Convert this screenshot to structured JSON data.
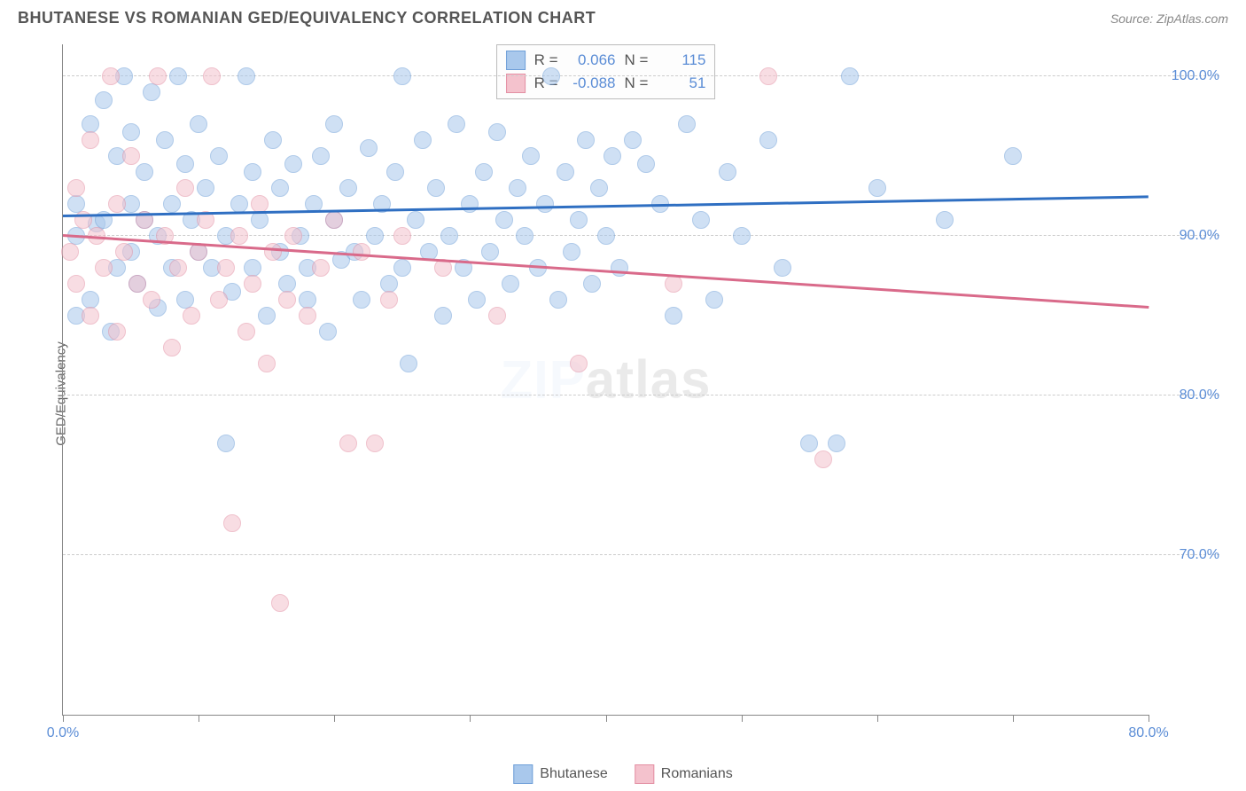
{
  "title": "BHUTANESE VS ROMANIAN GED/EQUIVALENCY CORRELATION CHART",
  "source": "Source: ZipAtlas.com",
  "watermark_a": "ZIP",
  "watermark_b": "atlas",
  "ylabel": "GED/Equivalency",
  "chart": {
    "type": "scatter",
    "xlim": [
      0,
      80
    ],
    "ylim": [
      60,
      102
    ],
    "xticks": [
      0,
      10,
      20,
      30,
      40,
      50,
      60,
      70,
      80
    ],
    "xtick_labels": {
      "0": "0.0%",
      "80": "80.0%"
    },
    "yticks": [
      70,
      80,
      90,
      100
    ],
    "ytick_labels": [
      "70.0%",
      "80.0%",
      "90.0%",
      "100.0%"
    ],
    "background": "#ffffff",
    "grid_color": "#cccccc",
    "axis_color": "#888888",
    "tick_label_color": "#5b8dd6",
    "tick_label_fontsize": 16,
    "point_radius": 10,
    "point_opacity": 0.55,
    "series": [
      {
        "name": "Bhutanese",
        "fill": "#a9c8ec",
        "stroke": "#6f9fd8",
        "trend": {
          "x0": 0,
          "y0": 91.2,
          "x1": 80,
          "y1": 92.4,
          "color": "#2f6fc2",
          "width": 2.5
        },
        "R": "0.066",
        "N": "115",
        "points": [
          [
            1,
            85
          ],
          [
            1,
            90
          ],
          [
            1,
            92
          ],
          [
            2,
            97
          ],
          [
            2,
            86
          ],
          [
            2.5,
            90.8
          ],
          [
            3,
            98.5
          ],
          [
            3,
            91
          ],
          [
            3.5,
            84
          ],
          [
            4,
            88
          ],
          [
            4,
            95
          ],
          [
            4.5,
            100
          ],
          [
            5,
            92
          ],
          [
            5,
            96.5
          ],
          [
            5,
            89
          ],
          [
            5.5,
            87
          ],
          [
            6,
            94
          ],
          [
            6,
            91
          ],
          [
            6.5,
            99
          ],
          [
            7,
            90
          ],
          [
            7,
            85.5
          ],
          [
            7.5,
            96
          ],
          [
            8,
            92
          ],
          [
            8,
            88
          ],
          [
            8.5,
            100
          ],
          [
            9,
            94.5
          ],
          [
            9,
            86
          ],
          [
            9.5,
            91
          ],
          [
            10,
            97
          ],
          [
            10,
            89
          ],
          [
            10.5,
            93
          ],
          [
            11,
            88
          ],
          [
            11.5,
            95
          ],
          [
            12,
            90
          ],
          [
            12,
            77
          ],
          [
            12.5,
            86.5
          ],
          [
            13,
            92
          ],
          [
            13.5,
            100
          ],
          [
            14,
            88
          ],
          [
            14,
            94
          ],
          [
            14.5,
            91
          ],
          [
            15,
            85
          ],
          [
            15.5,
            96
          ],
          [
            16,
            89
          ],
          [
            16,
            93
          ],
          [
            16.5,
            87
          ],
          [
            17,
            94.5
          ],
          [
            17.5,
            90
          ],
          [
            18,
            88
          ],
          [
            18,
            86
          ],
          [
            18.5,
            92
          ],
          [
            19,
            95
          ],
          [
            19.5,
            84
          ],
          [
            20,
            91
          ],
          [
            20,
            97
          ],
          [
            20.5,
            88.5
          ],
          [
            21,
            93
          ],
          [
            21.5,
            89
          ],
          [
            22,
            86
          ],
          [
            22.5,
            95.5
          ],
          [
            23,
            90
          ],
          [
            23.5,
            92
          ],
          [
            24,
            87
          ],
          [
            24.5,
            94
          ],
          [
            25,
            100
          ],
          [
            25,
            88
          ],
          [
            25.5,
            82
          ],
          [
            26,
            91
          ],
          [
            26.5,
            96
          ],
          [
            27,
            89
          ],
          [
            27.5,
            93
          ],
          [
            28,
            85
          ],
          [
            28.5,
            90
          ],
          [
            29,
            97
          ],
          [
            29.5,
            88
          ],
          [
            30,
            92
          ],
          [
            30.5,
            86
          ],
          [
            31,
            94
          ],
          [
            31.5,
            89
          ],
          [
            32,
            96.5
          ],
          [
            32.5,
            91
          ],
          [
            33,
            87
          ],
          [
            33.5,
            93
          ],
          [
            34,
            90
          ],
          [
            34.5,
            95
          ],
          [
            35,
            88
          ],
          [
            35.5,
            92
          ],
          [
            36,
            100
          ],
          [
            36.5,
            86
          ],
          [
            37,
            94
          ],
          [
            37.5,
            89
          ],
          [
            38,
            91
          ],
          [
            38.5,
            96
          ],
          [
            39,
            87
          ],
          [
            39.5,
            93
          ],
          [
            40,
            90
          ],
          [
            40.5,
            95
          ],
          [
            41,
            88
          ],
          [
            42,
            96
          ],
          [
            43,
            94.5
          ],
          [
            44,
            92
          ],
          [
            45,
            85
          ],
          [
            46,
            97
          ],
          [
            47,
            91
          ],
          [
            48,
            86
          ],
          [
            49,
            94
          ],
          [
            50,
            90
          ],
          [
            52,
            96
          ],
          [
            53,
            88
          ],
          [
            55,
            77
          ],
          [
            57,
            77
          ],
          [
            58,
            100
          ],
          [
            60,
            93
          ],
          [
            65,
            91
          ],
          [
            70,
            95
          ]
        ]
      },
      {
        "name": "Romanians",
        "fill": "#f4c2cd",
        "stroke": "#e38fa3",
        "trend": {
          "x0": 0,
          "y0": 90.0,
          "x1": 80,
          "y1": 85.5,
          "color": "#d96a8a",
          "width": 2.5
        },
        "R": "-0.088",
        "N": "51",
        "points": [
          [
            0.5,
            89
          ],
          [
            1,
            93
          ],
          [
            1,
            87
          ],
          [
            1.5,
            91
          ],
          [
            2,
            85
          ],
          [
            2,
            96
          ],
          [
            2.5,
            90
          ],
          [
            3,
            88
          ],
          [
            3.5,
            100
          ],
          [
            4,
            92
          ],
          [
            4,
            84
          ],
          [
            4.5,
            89
          ],
          [
            5,
            95
          ],
          [
            5.5,
            87
          ],
          [
            6,
            91
          ],
          [
            6.5,
            86
          ],
          [
            7,
            100
          ],
          [
            7.5,
            90
          ],
          [
            8,
            83
          ],
          [
            8.5,
            88
          ],
          [
            9,
            93
          ],
          [
            9.5,
            85
          ],
          [
            10,
            89
          ],
          [
            10.5,
            91
          ],
          [
            11,
            100
          ],
          [
            11.5,
            86
          ],
          [
            12,
            88
          ],
          [
            12.5,
            72
          ],
          [
            13,
            90
          ],
          [
            13.5,
            84
          ],
          [
            14,
            87
          ],
          [
            14.5,
            92
          ],
          [
            15,
            82
          ],
          [
            15.5,
            89
          ],
          [
            16,
            67
          ],
          [
            16.5,
            86
          ],
          [
            17,
            90
          ],
          [
            18,
            85
          ],
          [
            19,
            88
          ],
          [
            20,
            91
          ],
          [
            21,
            77
          ],
          [
            22,
            89
          ],
          [
            23,
            77
          ],
          [
            24,
            86
          ],
          [
            25,
            90
          ],
          [
            28,
            88
          ],
          [
            32,
            85
          ],
          [
            38,
            82
          ],
          [
            45,
            87
          ],
          [
            52,
            100
          ],
          [
            56,
            76
          ]
        ]
      }
    ]
  },
  "legend_corr": {
    "R_label": "R =",
    "N_label": "N ="
  },
  "legend_bottom": [
    {
      "label": "Bhutanese",
      "fill": "#a9c8ec",
      "stroke": "#6f9fd8"
    },
    {
      "label": "Romanians",
      "fill": "#f4c2cd",
      "stroke": "#e38fa3"
    }
  ]
}
